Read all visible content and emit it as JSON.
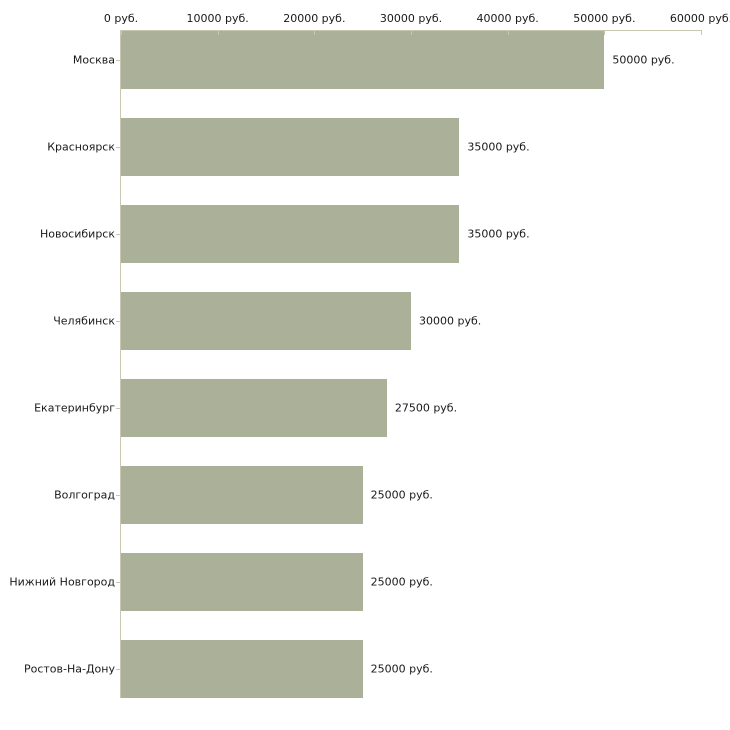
{
  "chart_data": {
    "type": "bar",
    "orientation": "horizontal",
    "title": "",
    "xlabel": "",
    "ylabel": "",
    "categories": [
      "Москва",
      "Красноярск",
      "Новосибирск",
      "Челябинск",
      "Екатеринбург",
      "Волгоград",
      "Нижний Новгород",
      "Ростов-На-Дону"
    ],
    "values": [
      50000,
      35000,
      35000,
      30000,
      27500,
      25000,
      25000,
      25000
    ],
    "value_labels": [
      "50000 руб.",
      "35000 руб.",
      "35000 руб.",
      "30000 руб.",
      "27500 руб.",
      "25000 руб.",
      "25000 руб.",
      "25000 руб."
    ],
    "x_ticks": [
      0,
      10000,
      20000,
      30000,
      40000,
      50000,
      60000
    ],
    "x_tick_labels": [
      "0 руб.",
      "10000 руб.",
      "20000 руб.",
      "30000 руб.",
      "40000 руб.",
      "50000 руб.",
      "60000 руб."
    ],
    "xlim": [
      0,
      60000
    ],
    "x_axis_position": "top",
    "grid": "off",
    "legend": "none",
    "bar_color": "#abb098",
    "axis_color": "#c9c7b2",
    "text_color": "#1a1a1a",
    "background_color": "#ffffff"
  }
}
